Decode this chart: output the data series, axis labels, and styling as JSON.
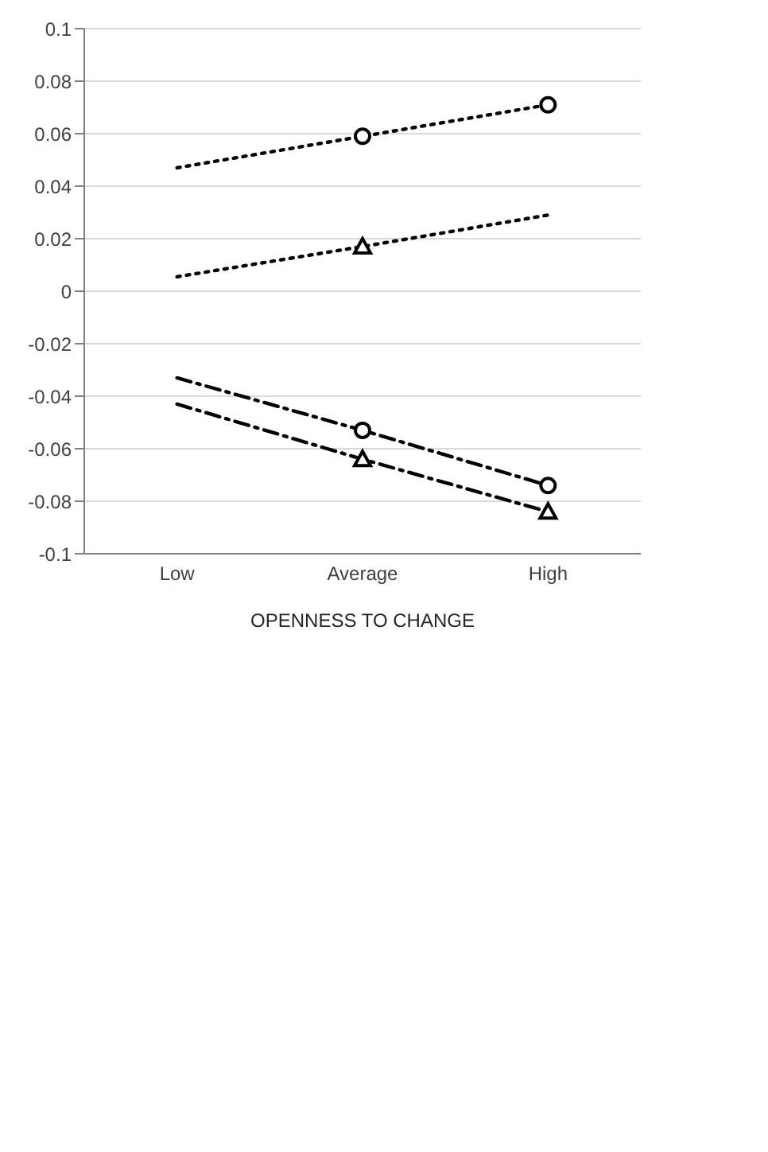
{
  "chart_data": {
    "type": "line",
    "categories": [
      "Low",
      "Average",
      "High"
    ],
    "xlabel": "OPENNESS TO CHANGE",
    "ylim": [
      -0.1,
      0.1
    ],
    "yticks": [
      -0.1,
      -0.08,
      -0.06,
      -0.04,
      -0.02,
      0,
      0.02,
      0.04,
      0.06,
      0.08,
      0.1
    ],
    "grid": "y",
    "series": [
      {
        "color": "#000000",
        "line_style": "dotted",
        "marker": "none",
        "values": [
          0.047,
          0.059,
          0.071
        ]
      },
      {
        "color": "#000000",
        "line_style": "dotted",
        "marker": "none",
        "values": [
          0.0055,
          0.017,
          0.029
        ]
      },
      {
        "color": "#000000",
        "line_style": "dashed",
        "marker": "none",
        "values": [
          -0.033,
          -0.053,
          -0.074
        ]
      },
      {
        "color": "#000000",
        "line_style": "dashed",
        "marker": "none",
        "values": [
          -0.043,
          -0.064,
          -0.084
        ]
      },
      {
        "type": "scatter",
        "color": "#000000",
        "marker": "circle",
        "x": [
          "Average",
          "High"
        ],
        "values": [
          0.059,
          0.071
        ]
      },
      {
        "type": "scatter",
        "color": "#000000",
        "marker": "triangle",
        "x": [
          "Average"
        ],
        "values": [
          0.017
        ]
      },
      {
        "type": "scatter",
        "color": "#000000",
        "marker": "circle",
        "x": [
          "Average",
          "High"
        ],
        "values": [
          -0.053,
          -0.074
        ]
      },
      {
        "type": "scatter",
        "color": "#000000",
        "marker": "triangle",
        "x": [
          "Average",
          "High"
        ],
        "values": [
          -0.064,
          -0.084
        ]
      }
    ]
  }
}
